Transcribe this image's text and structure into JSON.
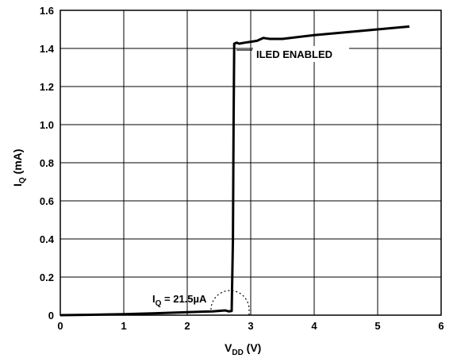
{
  "chart_data": {
    "type": "line",
    "xlabel": {
      "main": "V",
      "sub": "DD",
      "unit": " (V)"
    },
    "ylabel": {
      "main": "I",
      "sub": "Q",
      "unit": " (mA)"
    },
    "xlim": [
      0,
      6
    ],
    "ylim": [
      0,
      1.6
    ],
    "xticks": [
      "0",
      "1",
      "2",
      "3",
      "4",
      "5",
      "6"
    ],
    "yticks": [
      "0",
      "0.2",
      "0.4",
      "0.6",
      "0.8",
      "1.0",
      "1.2",
      "1.4",
      "1.6"
    ],
    "grid": true,
    "series": [
      {
        "points": [
          [
            0,
            0.0
          ],
          [
            0.5,
            0.002
          ],
          [
            1.0,
            0.005
          ],
          [
            1.5,
            0.01
          ],
          [
            2.0,
            0.016
          ],
          [
            2.4,
            0.02
          ],
          [
            2.6,
            0.025
          ],
          [
            2.65,
            0.02
          ],
          [
            2.7,
            0.022
          ],
          [
            2.72,
            0.4
          ],
          [
            2.73,
            1.0
          ],
          [
            2.74,
            1.425
          ],
          [
            2.78,
            1.43
          ],
          [
            2.82,
            1.425
          ],
          [
            2.9,
            1.43
          ],
          [
            3.0,
            1.435
          ],
          [
            3.1,
            1.44
          ],
          [
            3.2,
            1.455
          ],
          [
            3.3,
            1.45
          ],
          [
            3.5,
            1.45
          ],
          [
            4.0,
            1.47
          ],
          [
            4.5,
            1.485
          ],
          [
            5.0,
            1.5
          ],
          [
            5.5,
            1.515
          ]
        ]
      }
    ],
    "annotations": [
      {
        "text": "ILED ENABLED"
      },
      {
        "main": "I",
        "sub": "Q",
        "rest": " = 21.5µA"
      }
    ]
  }
}
